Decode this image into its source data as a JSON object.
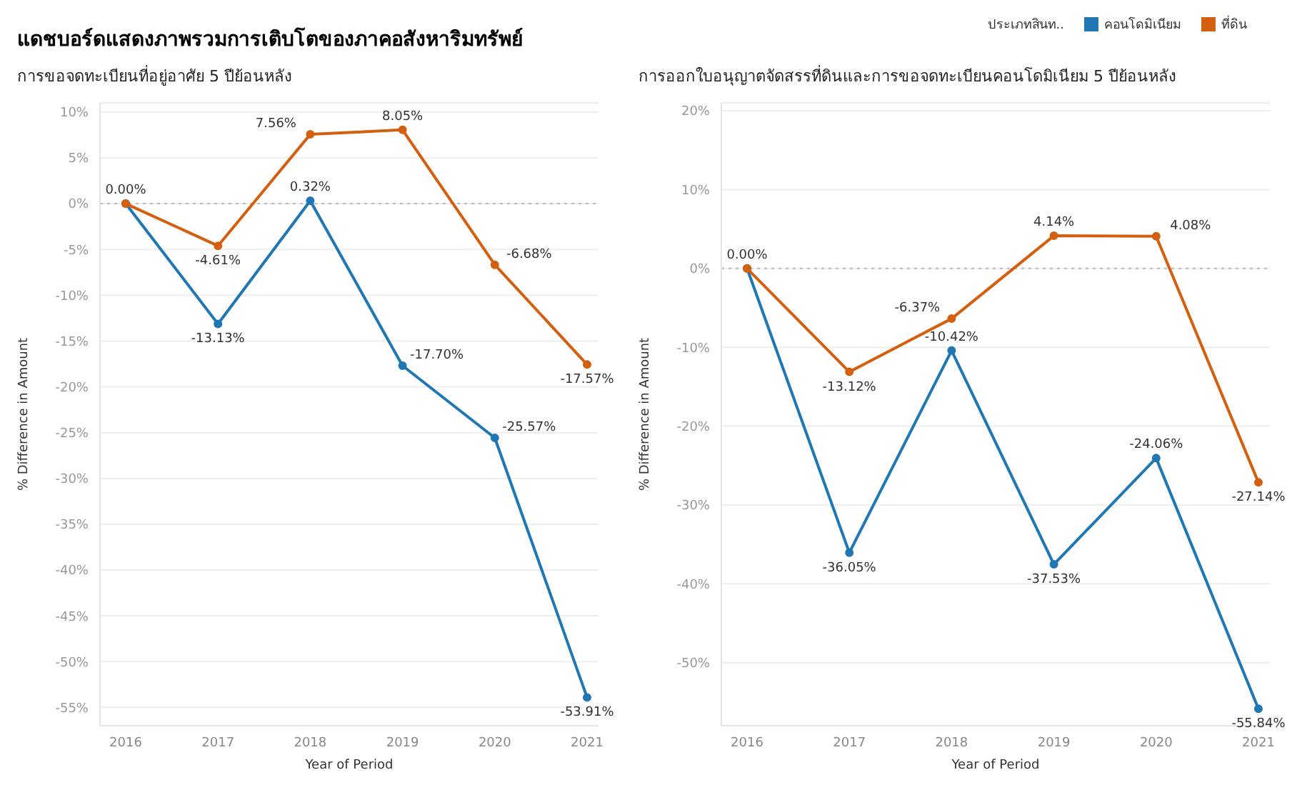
{
  "chart_data": [
    {
      "type": "line",
      "title": "แดชบอร์ดแสดงภาพรวมการเติบโตของภาคอสังหาริมทรัพย์",
      "subtitle": "การขอจดทะเบียนที่อยู่อาศัย 5 ปีย้อนหลัง",
      "xlabel": "Year of Period",
      "ylabel": "% Difference in Amount",
      "categories": [
        "2016",
        "2017",
        "2018",
        "2019",
        "2020",
        "2021"
      ],
      "series": [
        {
          "color": "#1f77b4",
          "values": [
            0,
            -13.13,
            0.32,
            -17.7,
            -25.57,
            -53.91
          ],
          "value_labels": [
            null,
            "-13.13%",
            "0.32%",
            "-17.70%",
            "-25.57%",
            "-53.91%"
          ]
        },
        {
          "color": "#d35f0f",
          "values": [
            0,
            -4.61,
            7.56,
            8.05,
            -6.68,
            -17.57
          ],
          "value_labels": [
            "0.00%",
            "-4.61%",
            "7.56%",
            "8.05%",
            "-6.68%",
            "-17.57%"
          ]
        }
      ],
      "ylim": [
        -57,
        11
      ],
      "yticks": [
        {
          "value": -55,
          "label": "-55%"
        },
        {
          "value": -50,
          "label": "-50%"
        },
        {
          "value": -45,
          "label": "-45%"
        },
        {
          "value": -40,
          "label": "-40%"
        },
        {
          "value": -35,
          "label": "-35%"
        },
        {
          "value": -30,
          "label": "-30%"
        },
        {
          "value": -25,
          "label": "-25%"
        },
        {
          "value": -20,
          "label": "-20%"
        },
        {
          "value": -15,
          "label": "-15%"
        },
        {
          "value": -10,
          "label": "-10%"
        },
        {
          "value": -5,
          "label": "-5%"
        },
        {
          "value": 0,
          "label": "0%"
        },
        {
          "value": 5,
          "label": "5%"
        },
        {
          "value": 10,
          "label": "10%"
        }
      ],
      "grid": "y",
      "marker": "circle",
      "line_style": "solid",
      "legend": false,
      "ref_lines": [
        {
          "axis": "y",
          "value": 0,
          "line_style": "dotted",
          "color": "#bbbbbb"
        }
      ]
    },
    {
      "type": "line",
      "title": "การออกใบอนุญาตจัดสรรที่ดินและการขอจดทะเบียนคอนโดมิเนียม 5 ปีย้อนหลัง",
      "xlabel": "Year of Period",
      "ylabel": "% Difference in Amount",
      "legend_title": "ประเภทสินท..",
      "categories": [
        "2016",
        "2017",
        "2018",
        "2019",
        "2020",
        "2021"
      ],
      "series": [
        {
          "name": "คอนโดมิเนียม",
          "color": "#1f77b4",
          "values": [
            0,
            -36.05,
            -10.42,
            -37.53,
            -24.06,
            -55.84
          ],
          "value_labels": [
            null,
            "-36.05%",
            "-10.42%",
            "-37.53%",
            "-24.06%",
            "-55.84%"
          ]
        },
        {
          "name": "ที่ดิน",
          "color": "#d35f0f",
          "values": [
            0,
            -13.12,
            -6.37,
            4.14,
            4.08,
            -27.14
          ],
          "value_labels": [
            "0.00%",
            "-13.12%",
            "-6.37%",
            "4.14%",
            "4.08%",
            "-27.14%"
          ]
        }
      ],
      "ylim": [
        -58,
        21
      ],
      "yticks": [
        {
          "value": -50,
          "label": "-50%"
        },
        {
          "value": -40,
          "label": "-40%"
        },
        {
          "value": -30,
          "label": "-30%"
        },
        {
          "value": -20,
          "label": "-20%"
        },
        {
          "value": -10,
          "label": "-10%"
        },
        {
          "value": 0,
          "label": "0%"
        },
        {
          "value": 10,
          "label": "10%"
        },
        {
          "value": 20,
          "label": "20%"
        }
      ],
      "grid": "y",
      "marker": "circle",
      "line_style": "solid",
      "legend": "top right",
      "ref_lines": [
        {
          "axis": "y",
          "value": 0,
          "line_style": "dotted",
          "color": "#bbbbbb"
        }
      ]
    }
  ]
}
